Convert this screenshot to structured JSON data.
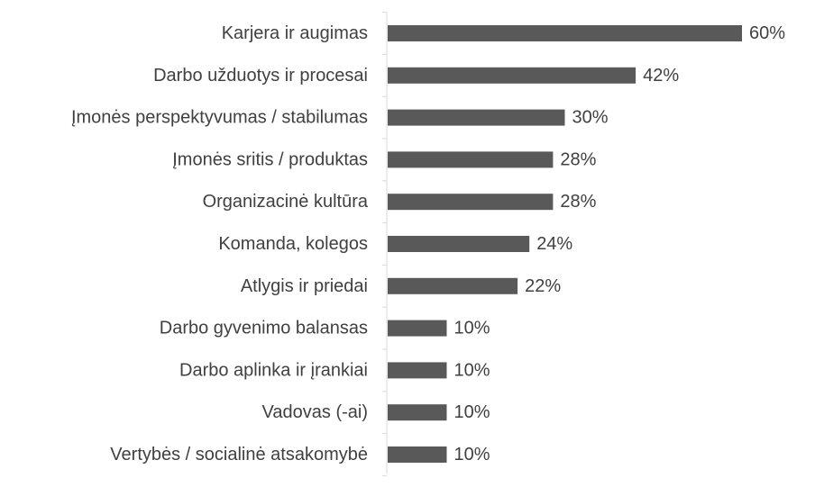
{
  "chart_data": {
    "type": "bar",
    "orientation": "horizontal",
    "title": "",
    "xlabel": "",
    "ylabel": "",
    "xlim": [
      0,
      60
    ],
    "grid": false,
    "legend": "none",
    "bar_color": "#595959",
    "axis_color": "#d9d9d9",
    "text_color": "#404040",
    "categories": [
      "Karjera ir augimas",
      "Darbo užduotys ir procesai",
      "Įmonės perspektyvumas / stabilumas",
      "Įmonės sritis / produktas",
      "Organizacinė kultūra",
      "Komanda, kolegos",
      "Atlygis ir priedai",
      "Darbo gyvenimo balansas",
      "Darbo aplinka ir įrankiai",
      "Vadovas (-ai)",
      "Vertybės / socialinė atsakomybė"
    ],
    "values": [
      60,
      42,
      30,
      28,
      28,
      24,
      22,
      10,
      10,
      10,
      10
    ],
    "value_labels": [
      "60%",
      "42%",
      "30%",
      "28%",
      "28%",
      "24%",
      "22%",
      "10%",
      "10%",
      "10%",
      "10%"
    ]
  }
}
